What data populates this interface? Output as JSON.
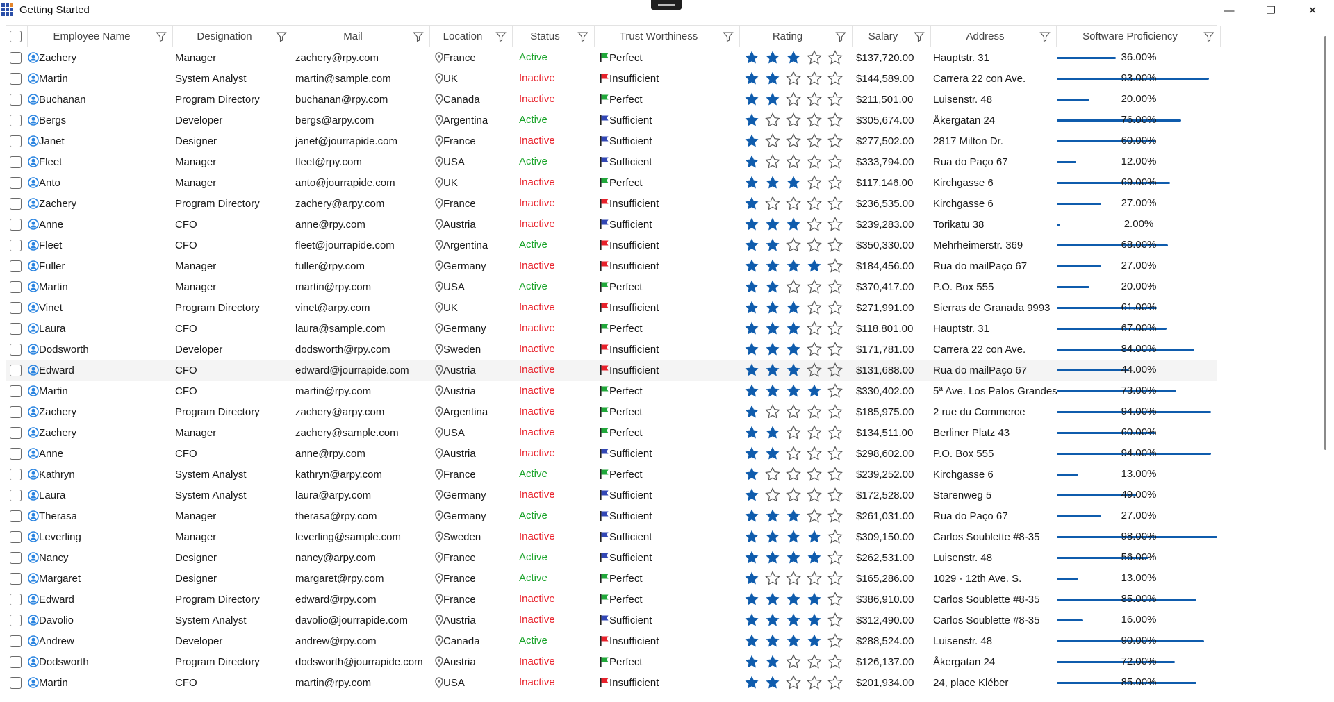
{
  "window": {
    "title": "Getting Started",
    "minimize_glyph": "—",
    "restore_glyph": "❐",
    "close_glyph": "✕"
  },
  "columns": [
    "Employee Name",
    "Designation",
    "Mail",
    "Location",
    "Status",
    "Trust Worthiness",
    "Rating",
    "Salary",
    "Address",
    "Software Proficiency"
  ],
  "colors": {
    "active": "#1aa32a",
    "inactive": "#e8212b",
    "star": "#0f5cad",
    "flag_perfect": "#20a83a",
    "flag_sufficient": "#3247b5",
    "flag_insufficient": "#e8212b",
    "avatar": "#2a84e0"
  },
  "icons": [
    "filter-icon",
    "user-avatar-icon",
    "location-pin-icon",
    "flag-icon",
    "star-icon",
    "checkbox"
  ],
  "rows": [
    {
      "name": "Zachery",
      "designation": "Manager",
      "mail": "zachery@rpy.com",
      "location": "France",
      "status": "Active",
      "trust": "Perfect",
      "rating": 3,
      "salary": "$137,720.00",
      "address": "Hauptstr. 31",
      "proficiency": 36,
      "proficiency_label": "36.00%"
    },
    {
      "name": "Martin",
      "designation": "System Analyst",
      "mail": "martin@sample.com",
      "location": "UK",
      "status": "Inactive",
      "trust": "Insufficient",
      "rating": 2,
      "salary": "$144,589.00",
      "address": "Carrera 22 con Ave.",
      "proficiency": 93,
      "proficiency_label": "93.00%"
    },
    {
      "name": "Buchanan",
      "designation": "Program Directory",
      "mail": "buchanan@rpy.com",
      "location": "Canada",
      "status": "Inactive",
      "trust": "Perfect",
      "rating": 2,
      "salary": "$211,501.00",
      "address": "Luisenstr. 48",
      "proficiency": 20,
      "proficiency_label": "20.00%"
    },
    {
      "name": "Bergs",
      "designation": "Developer",
      "mail": "bergs@arpy.com",
      "location": "Argentina",
      "status": "Active",
      "trust": "Sufficient",
      "rating": 1,
      "salary": "$305,674.00",
      "address": "Åkergatan 24",
      "proficiency": 76,
      "proficiency_label": "76.00%"
    },
    {
      "name": "Janet",
      "designation": "Designer",
      "mail": "janet@jourrapide.com",
      "location": "France",
      "status": "Inactive",
      "trust": "Sufficient",
      "rating": 1,
      "salary": "$277,502.00",
      "address": "2817 Milton Dr.",
      "proficiency": 60,
      "proficiency_label": "60.00%"
    },
    {
      "name": "Fleet",
      "designation": "Manager",
      "mail": "fleet@rpy.com",
      "location": "USA",
      "status": "Active",
      "trust": "Sufficient",
      "rating": 1,
      "salary": "$333,794.00",
      "address": " Rua do Paço 67",
      "proficiency": 12,
      "proficiency_label": "12.00%"
    },
    {
      "name": "Anto",
      "designation": "Manager",
      "mail": "anto@jourrapide.com",
      "location": "UK",
      "status": "Inactive",
      "trust": "Perfect",
      "rating": 3,
      "salary": "$117,146.00",
      "address": "Kirchgasse 6",
      "proficiency": 69,
      "proficiency_label": "69.00%"
    },
    {
      "name": "Zachery",
      "designation": "Program Directory",
      "mail": "zachery@arpy.com",
      "location": "France",
      "status": "Inactive",
      "trust": "Insufficient",
      "rating": 1,
      "salary": "$236,535.00",
      "address": "Kirchgasse 6",
      "proficiency": 27,
      "proficiency_label": "27.00%"
    },
    {
      "name": "Anne",
      "designation": "CFO",
      "mail": "anne@rpy.com",
      "location": "Austria",
      "status": "Inactive",
      "trust": "Sufficient",
      "rating": 3,
      "salary": "$239,283.00",
      "address": "Torikatu 38",
      "proficiency": 2,
      "proficiency_label": "2.00%"
    },
    {
      "name": "Fleet",
      "designation": "CFO",
      "mail": "fleet@jourrapide.com",
      "location": "Argentina",
      "status": "Active",
      "trust": "Insufficient",
      "rating": 2,
      "salary": "$350,330.00",
      "address": "Mehrheimerstr. 369",
      "proficiency": 68,
      "proficiency_label": "68.00%"
    },
    {
      "name": "Fuller",
      "designation": "Manager",
      "mail": "fuller@rpy.com",
      "location": "Germany",
      "status": "Inactive",
      "trust": "Insufficient",
      "rating": 4,
      "salary": "$184,456.00",
      "address": "Rua do mailPaço 67",
      "proficiency": 27,
      "proficiency_label": "27.00%"
    },
    {
      "name": "Martin",
      "designation": "Manager",
      "mail": "martin@rpy.com",
      "location": "USA",
      "status": "Active",
      "trust": "Perfect",
      "rating": 2,
      "salary": "$370,417.00",
      "address": "P.O. Box 555",
      "proficiency": 20,
      "proficiency_label": "20.00%"
    },
    {
      "name": "Vinet",
      "designation": "Program Directory",
      "mail": "vinet@arpy.com",
      "location": "UK",
      "status": "Inactive",
      "trust": "Insufficient",
      "rating": 3,
      "salary": "$271,991.00",
      "address": "Sierras de Granada 9993",
      "proficiency": 61,
      "proficiency_label": "61.00%"
    },
    {
      "name": "Laura",
      "designation": "CFO",
      "mail": "laura@sample.com",
      "location": "Germany",
      "status": "Inactive",
      "trust": "Perfect",
      "rating": 3,
      "salary": "$118,801.00",
      "address": "Hauptstr. 31",
      "proficiency": 67,
      "proficiency_label": "67.00%"
    },
    {
      "name": "Dodsworth",
      "designation": "Developer",
      "mail": "dodsworth@rpy.com",
      "location": "Sweden",
      "status": "Inactive",
      "trust": "Insufficient",
      "rating": 3,
      "salary": "$171,781.00",
      "address": "Carrera 22 con Ave.",
      "proficiency": 84,
      "proficiency_label": "84.00%"
    },
    {
      "name": "Edward",
      "designation": "CFO",
      "mail": "edward@jourrapide.com",
      "location": "Austria",
      "status": "Inactive",
      "trust": "Insufficient",
      "rating": 3,
      "salary": "$131,688.00",
      "address": "Rua do mailPaço 67",
      "proficiency": 44,
      "proficiency_label": "44.00%"
    },
    {
      "name": "Martin",
      "designation": "CFO",
      "mail": "martin@rpy.com",
      "location": "Austria",
      "status": "Inactive",
      "trust": "Perfect",
      "rating": 4,
      "salary": "$330,402.00",
      "address": "5ª Ave. Los Palos Grandes",
      "proficiency": 73,
      "proficiency_label": "73.00%"
    },
    {
      "name": "Zachery",
      "designation": "Program Directory",
      "mail": "zachery@arpy.com",
      "location": "Argentina",
      "status": "Inactive",
      "trust": "Perfect",
      "rating": 1,
      "salary": "$185,975.00",
      "address": "2 rue du Commerce",
      "proficiency": 94,
      "proficiency_label": "94.00%"
    },
    {
      "name": "Zachery",
      "designation": "Manager",
      "mail": "zachery@sample.com",
      "location": "USA",
      "status": "Inactive",
      "trust": "Perfect",
      "rating": 2,
      "salary": "$134,511.00",
      "address": "Berliner Platz 43",
      "proficiency": 60,
      "proficiency_label": "60.00%"
    },
    {
      "name": "Anne",
      "designation": "CFO",
      "mail": "anne@rpy.com",
      "location": "Austria",
      "status": "Inactive",
      "trust": "Sufficient",
      "rating": 2,
      "salary": "$298,602.00",
      "address": "P.O. Box 555",
      "proficiency": 94,
      "proficiency_label": "94.00%"
    },
    {
      "name": "Kathryn",
      "designation": "System Analyst",
      "mail": "kathryn@arpy.com",
      "location": "France",
      "status": "Active",
      "trust": "Perfect",
      "rating": 1,
      "salary": "$239,252.00",
      "address": "Kirchgasse 6",
      "proficiency": 13,
      "proficiency_label": "13.00%"
    },
    {
      "name": "Laura",
      "designation": "System Analyst",
      "mail": "laura@arpy.com",
      "location": "Germany",
      "status": "Inactive",
      "trust": "Sufficient",
      "rating": 1,
      "salary": "$172,528.00",
      "address": "Starenweg 5",
      "proficiency": 49,
      "proficiency_label": "49.00%"
    },
    {
      "name": "Therasa",
      "designation": "Manager",
      "mail": "therasa@rpy.com",
      "location": "Germany",
      "status": "Active",
      "trust": "Sufficient",
      "rating": 3,
      "salary": "$261,031.00",
      "address": " Rua do Paço 67",
      "proficiency": 27,
      "proficiency_label": "27.00%"
    },
    {
      "name": "Leverling",
      "designation": "Manager",
      "mail": "leverling@sample.com",
      "location": "Sweden",
      "status": "Inactive",
      "trust": "Sufficient",
      "rating": 4,
      "salary": "$309,150.00",
      "address": " Carlos Soublette #8-35",
      "proficiency": 98,
      "proficiency_label": "98.00%"
    },
    {
      "name": "Nancy",
      "designation": "Designer",
      "mail": "nancy@arpy.com",
      "location": "France",
      "status": "Active",
      "trust": "Sufficient",
      "rating": 4,
      "salary": "$262,531.00",
      "address": "Luisenstr. 48",
      "proficiency": 56,
      "proficiency_label": "56.00%"
    },
    {
      "name": "Margaret",
      "designation": "Designer",
      "mail": "margaret@rpy.com",
      "location": "France",
      "status": "Active",
      "trust": "Perfect",
      "rating": 1,
      "salary": "$165,286.00",
      "address": "1029 - 12th Ave. S.",
      "proficiency": 13,
      "proficiency_label": "13.00%"
    },
    {
      "name": "Edward",
      "designation": "Program Directory",
      "mail": "edward@rpy.com",
      "location": "France",
      "status": "Inactive",
      "trust": "Perfect",
      "rating": 4,
      "salary": "$386,910.00",
      "address": " Carlos Soublette #8-35",
      "proficiency": 85,
      "proficiency_label": "85.00%"
    },
    {
      "name": "Davolio",
      "designation": "System Analyst",
      "mail": "davolio@jourrapide.com",
      "location": "Austria",
      "status": "Inactive",
      "trust": "Sufficient",
      "rating": 4,
      "salary": "$312,490.00",
      "address": " Carlos Soublette #8-35",
      "proficiency": 16,
      "proficiency_label": "16.00%"
    },
    {
      "name": "Andrew",
      "designation": "Developer",
      "mail": "andrew@rpy.com",
      "location": "Canada",
      "status": "Active",
      "trust": "Insufficient",
      "rating": 4,
      "salary": "$288,524.00",
      "address": "Luisenstr. 48",
      "proficiency": 90,
      "proficiency_label": "90.00%"
    },
    {
      "name": "Dodsworth",
      "designation": "Program Directory",
      "mail": "dodsworth@jourrapide.com",
      "location": "Austria",
      "status": "Inactive",
      "trust": "Perfect",
      "rating": 2,
      "salary": "$126,137.00",
      "address": "Åkergatan 24",
      "proficiency": 72,
      "proficiency_label": "72.00%"
    },
    {
      "name": "Martin",
      "designation": "CFO",
      "mail": "martin@rpy.com",
      "location": "USA",
      "status": "Inactive",
      "trust": "Insufficient",
      "rating": 2,
      "salary": "$201,934.00",
      "address": "24, place Kléber",
      "proficiency": 85,
      "proficiency_label": "85.00%"
    }
  ]
}
